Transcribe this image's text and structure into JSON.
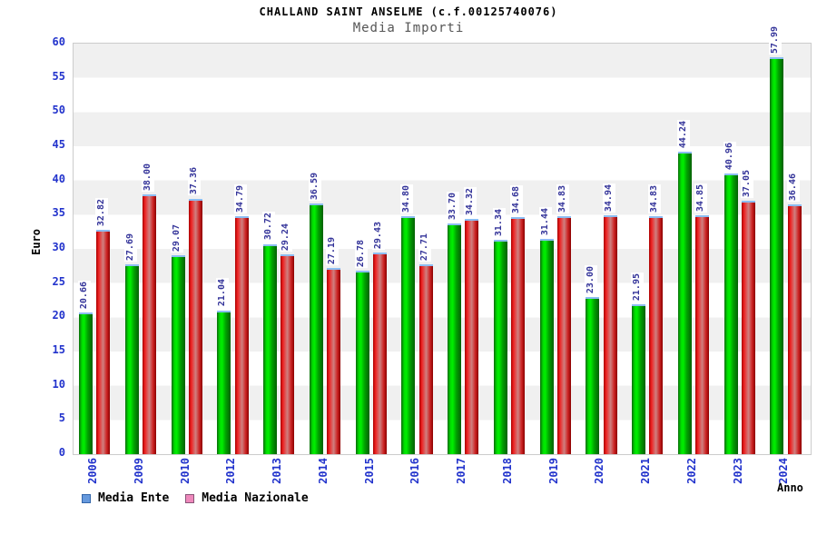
{
  "header": {
    "title": "CHALLAND SAINT ANSELME (c.f.00125740076)",
    "subtitle": "Media Importi"
  },
  "y_axis": {
    "label": "Euro",
    "ticks": [
      0,
      5,
      10,
      15,
      20,
      25,
      30,
      35,
      40,
      45,
      50,
      55,
      60
    ],
    "max": 60,
    "tick_color": "#2233cc"
  },
  "x_axis": {
    "label": "Anno",
    "tick_color": "#2233cc"
  },
  "legend": {
    "items": [
      {
        "label": "Media Ente",
        "swatch_color": "#6699dd",
        "swatch_border": "#3366aa"
      },
      {
        "label": "Media Nazionale",
        "swatch_color": "#ee88bb",
        "swatch_border": "#885577"
      }
    ]
  },
  "colors": {
    "bar_green": "#00cc00",
    "bar_red": "#dd2222",
    "bar_top_edge": "#8cbdf2",
    "value_label": "#333399",
    "band_gray": "#f0f0f0",
    "plot_border": "#cccccc"
  },
  "chart_data": {
    "type": "bar",
    "title": "CHALLAND SAINT ANSELME (c.f.00125740076)",
    "subtitle": "Media Importi",
    "xlabel": "Anno",
    "ylabel": "Euro",
    "ylim": [
      0,
      60
    ],
    "grid": "horizontal-bands",
    "legend_position": "bottom-left",
    "categories": [
      "2006",
      "2009",
      "2010",
      "2012",
      "2013",
      "2014",
      "2015",
      "2016",
      "2017",
      "2018",
      "2019",
      "2020",
      "2021",
      "2022",
      "2023",
      "2024"
    ],
    "series": [
      {
        "name": "Media Ente",
        "color": "green",
        "values": [
          20.66,
          27.69,
          29.07,
          21.04,
          30.72,
          36.59,
          26.78,
          34.8,
          33.7,
          31.34,
          31.44,
          23.0,
          21.95,
          44.24,
          40.96,
          57.99
        ]
      },
      {
        "name": "Media Nazionale",
        "color": "red",
        "values": [
          32.82,
          38.0,
          37.36,
          34.79,
          29.24,
          27.19,
          29.43,
          27.71,
          34.32,
          34.68,
          34.83,
          34.94,
          34.83,
          34.85,
          37.05,
          36.46
        ]
      }
    ]
  }
}
